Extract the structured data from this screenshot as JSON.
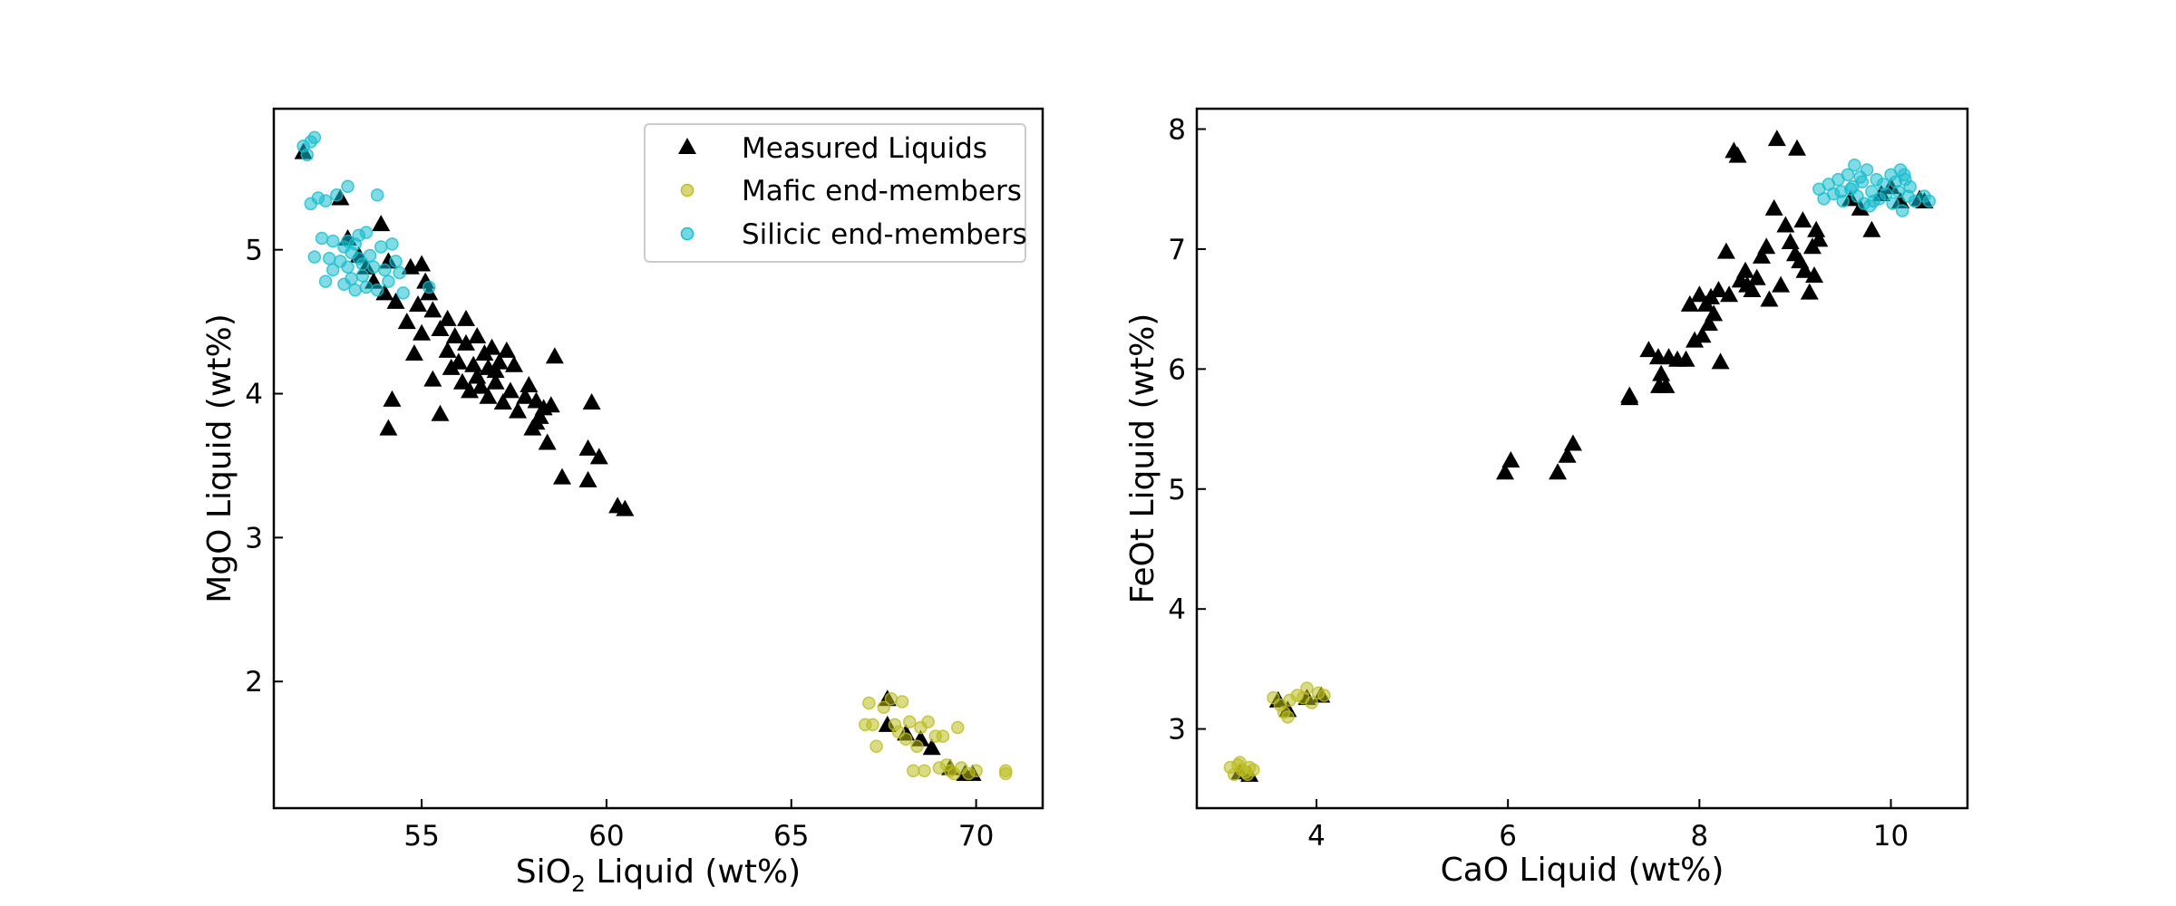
{
  "chart_data": [
    {
      "type": "scatter",
      "xlabel_main": "SiO",
      "xlabel_sub": "2",
      "xlabel_rest": " Liquid (wt%)",
      "ylabel": "MgO Liquid (wt%)",
      "xlim": [
        51.0,
        71.8
      ],
      "ylim": [
        1.12,
        5.98
      ],
      "xticks": [
        55,
        60,
        65,
        70
      ],
      "yticks": [
        2,
        3,
        4,
        5
      ],
      "legend_position": "top-right",
      "series": [
        {
          "name": "Measured Liquids",
          "marker": "triangle",
          "color": "#000000",
          "points": [
            [
              51.8,
              5.68
            ],
            [
              52.8,
              5.36
            ],
            [
              53.0,
              5.08
            ],
            [
              53.3,
              4.96
            ],
            [
              53.5,
              4.88
            ],
            [
              53.7,
              4.78
            ],
            [
              53.9,
              5.18
            ],
            [
              54.0,
              4.7
            ],
            [
              54.1,
              4.92
            ],
            [
              54.3,
              4.64
            ],
            [
              54.6,
              4.5
            ],
            [
              54.7,
              4.88
            ],
            [
              54.8,
              4.28
            ],
            [
              54.9,
              4.62
            ],
            [
              55.0,
              4.42
            ],
            [
              55.1,
              4.78
            ],
            [
              55.2,
              4.7
            ],
            [
              55.3,
              4.58
            ],
            [
              55.3,
              4.1
            ],
            [
              55.5,
              4.45
            ],
            [
              55.5,
              3.86
            ],
            [
              55.7,
              4.52
            ],
            [
              55.7,
              4.3
            ],
            [
              55.8,
              4.18
            ],
            [
              55.9,
              4.4
            ],
            [
              56.0,
              4.22
            ],
            [
              56.1,
              4.08
            ],
            [
              56.2,
              4.35
            ],
            [
              56.2,
              4.52
            ],
            [
              56.3,
              4.02
            ],
            [
              56.4,
              4.2
            ],
            [
              56.5,
              4.12
            ],
            [
              56.5,
              4.4
            ],
            [
              56.6,
              4.05
            ],
            [
              56.7,
              4.28
            ],
            [
              56.8,
              4.18
            ],
            [
              56.8,
              3.98
            ],
            [
              56.9,
              4.32
            ],
            [
              57.0,
              4.08
            ],
            [
              57.1,
              4.22
            ],
            [
              57.2,
              3.94
            ],
            [
              57.3,
              4.3
            ],
            [
              57.4,
              4.02
            ],
            [
              57.5,
              4.2
            ],
            [
              57.6,
              3.88
            ],
            [
              57.8,
              3.98
            ],
            [
              57.9,
              4.06
            ],
            [
              58.0,
              3.76
            ],
            [
              58.1,
              3.95
            ],
            [
              58.2,
              3.84
            ],
            [
              58.3,
              3.9
            ],
            [
              58.4,
              3.66
            ],
            [
              58.5,
              3.92
            ],
            [
              58.6,
              4.26
            ],
            [
              58.8,
              3.42
            ],
            [
              59.5,
              3.62
            ],
            [
              59.5,
              3.4
            ],
            [
              59.6,
              3.94
            ],
            [
              59.8,
              3.56
            ],
            [
              60.3,
              3.22
            ],
            [
              60.5,
              3.2
            ],
            [
              54.1,
              3.76
            ],
            [
              54.2,
              3.96
            ],
            [
              55.0,
              4.9
            ],
            [
              56.0,
              4.22
            ],
            [
              57.0,
              4.16
            ],
            [
              58.1,
              3.8
            ],
            [
              67.6,
              1.88
            ],
            [
              67.6,
              1.7
            ],
            [
              68.1,
              1.64
            ],
            [
              68.5,
              1.6
            ],
            [
              68.8,
              1.54
            ],
            [
              69.3,
              1.4
            ],
            [
              69.7,
              1.36
            ],
            [
              69.9,
              1.36
            ]
          ]
        },
        {
          "name": "Mafic end-members",
          "marker": "circle",
          "color": "#bcbd22",
          "points": [
            [
              67.1,
              1.85
            ],
            [
              67.2,
              1.7
            ],
            [
              67.3,
              1.55
            ],
            [
              67.5,
              1.82
            ],
            [
              67.7,
              1.88
            ],
            [
              67.8,
              1.7
            ],
            [
              67.9,
              1.65
            ],
            [
              68.0,
              1.86
            ],
            [
              68.1,
              1.6
            ],
            [
              68.2,
              1.72
            ],
            [
              68.4,
              1.55
            ],
            [
              68.5,
              1.68
            ],
            [
              68.6,
              1.38
            ],
            [
              68.7,
              1.72
            ],
            [
              68.9,
              1.62
            ],
            [
              69.0,
              1.4
            ],
            [
              69.1,
              1.62
            ],
            [
              69.2,
              1.42
            ],
            [
              69.3,
              1.38
            ],
            [
              69.5,
              1.68
            ],
            [
              69.6,
              1.4
            ],
            [
              69.8,
              1.36
            ],
            [
              70.0,
              1.38
            ],
            [
              70.8,
              1.38
            ],
            [
              70.8,
              1.36
            ],
            [
              67.0,
              1.7
            ],
            [
              68.3,
              1.38
            ],
            [
              69.4,
              1.36
            ]
          ]
        },
        {
          "name": "Silicic end-members",
          "marker": "circle",
          "color": "#17becf",
          "points": [
            [
              51.8,
              5.72
            ],
            [
              51.9,
              5.66
            ],
            [
              52.0,
              5.75
            ],
            [
              52.1,
              5.78
            ],
            [
              52.0,
              5.32
            ],
            [
              52.1,
              4.95
            ],
            [
              52.3,
              5.08
            ],
            [
              52.4,
              4.78
            ],
            [
              52.4,
              5.34
            ],
            [
              52.5,
              4.94
            ],
            [
              52.6,
              4.86
            ],
            [
              52.6,
              5.06
            ],
            [
              52.7,
              5.38
            ],
            [
              52.8,
              4.92
            ],
            [
              52.9,
              5.02
            ],
            [
              53.0,
              4.88
            ],
            [
              53.0,
              5.44
            ],
            [
              53.1,
              4.8
            ],
            [
              53.1,
              4.98
            ],
            [
              53.2,
              5.04
            ],
            [
              53.2,
              4.72
            ],
            [
              53.3,
              5.1
            ],
            [
              53.4,
              4.9
            ],
            [
              53.4,
              4.82
            ],
            [
              53.5,
              4.74
            ],
            [
              53.5,
              5.12
            ],
            [
              53.6,
              4.96
            ],
            [
              53.7,
              4.88
            ],
            [
              53.8,
              4.72
            ],
            [
              53.8,
              5.38
            ],
            [
              53.9,
              5.02
            ],
            [
              54.0,
              4.86
            ],
            [
              54.1,
              4.78
            ],
            [
              54.2,
              5.04
            ],
            [
              54.3,
              4.92
            ],
            [
              54.4,
              4.84
            ],
            [
              54.5,
              4.7
            ],
            [
              55.2,
              4.74
            ],
            [
              52.2,
              5.36
            ],
            [
              53.3,
              4.94
            ],
            [
              53.0,
              5.06
            ],
            [
              52.9,
              4.76
            ]
          ]
        }
      ]
    },
    {
      "type": "scatter",
      "xlabel": "CaO Liquid (wt%)",
      "ylabel": "FeOt Liquid (wt%)",
      "xlim": [
        2.75,
        10.8
      ],
      "ylim": [
        2.34,
        8.17
      ],
      "xticks": [
        4,
        6,
        8,
        10
      ],
      "yticks": [
        3,
        4,
        5,
        6,
        7,
        8
      ],
      "series": [
        {
          "name": "Measured Liquids",
          "marker": "triangle",
          "color": "#000000",
          "points": [
            [
              3.2,
              2.64
            ],
            [
              3.3,
              2.62
            ],
            [
              3.6,
              3.24
            ],
            [
              3.7,
              3.16
            ],
            [
              3.9,
              3.26
            ],
            [
              4.05,
              3.28
            ],
            [
              5.97,
              5.14
            ],
            [
              6.03,
              5.24
            ],
            [
              6.52,
              5.14
            ],
            [
              6.62,
              5.28
            ],
            [
              6.68,
              5.38
            ],
            [
              7.27,
              5.78
            ],
            [
              7.27,
              5.76
            ],
            [
              7.47,
              6.16
            ],
            [
              7.57,
              6.1
            ],
            [
              7.58,
              5.86
            ],
            [
              7.6,
              5.96
            ],
            [
              7.65,
              5.86
            ],
            [
              7.68,
              6.1
            ],
            [
              7.77,
              6.08
            ],
            [
              7.86,
              6.08
            ],
            [
              7.9,
              6.54
            ],
            [
              7.95,
              6.24
            ],
            [
              8.0,
              6.62
            ],
            [
              8.03,
              6.28
            ],
            [
              8.07,
              6.54
            ],
            [
              8.1,
              6.38
            ],
            [
              8.12,
              6.6
            ],
            [
              8.15,
              6.46
            ],
            [
              8.2,
              6.66
            ],
            [
              8.22,
              6.06
            ],
            [
              8.28,
              6.98
            ],
            [
              8.31,
              6.62
            ],
            [
              8.36,
              7.82
            ],
            [
              8.4,
              7.78
            ],
            [
              8.43,
              6.74
            ],
            [
              8.48,
              6.82
            ],
            [
              8.5,
              6.7
            ],
            [
              8.55,
              6.66
            ],
            [
              8.6,
              6.76
            ],
            [
              8.65,
              6.94
            ],
            [
              8.7,
              7.02
            ],
            [
              8.73,
              6.58
            ],
            [
              8.78,
              7.34
            ],
            [
              8.81,
              7.92
            ],
            [
              8.85,
              6.7
            ],
            [
              8.9,
              7.2
            ],
            [
              8.95,
              7.06
            ],
            [
              9.0,
              6.96
            ],
            [
              9.02,
              7.84
            ],
            [
              9.05,
              6.9
            ],
            [
              9.08,
              7.24
            ],
            [
              9.1,
              6.82
            ],
            [
              9.15,
              6.64
            ],
            [
              9.18,
              7.02
            ],
            [
              9.2,
              6.78
            ],
            [
              9.22,
              7.16
            ],
            [
              9.25,
              7.08
            ],
            [
              9.58,
              7.42
            ],
            [
              9.68,
              7.34
            ],
            [
              9.8,
              7.16
            ],
            [
              9.9,
              7.46
            ],
            [
              10.0,
              7.52
            ],
            [
              10.1,
              7.4
            ],
            [
              10.3,
              7.42
            ],
            [
              10.35,
              7.4
            ]
          ]
        },
        {
          "name": "Mafic end-members",
          "marker": "circle",
          "color": "#bcbd22",
          "points": [
            [
              3.1,
              2.68
            ],
            [
              3.14,
              2.62
            ],
            [
              3.18,
              2.7
            ],
            [
              3.22,
              2.66
            ],
            [
              3.26,
              2.64
            ],
            [
              3.3,
              2.68
            ],
            [
              3.34,
              2.66
            ],
            [
              3.2,
              2.72
            ],
            [
              3.28,
              2.62
            ],
            [
              3.55,
              3.26
            ],
            [
              3.62,
              3.2
            ],
            [
              3.66,
              3.14
            ],
            [
              3.72,
              3.24
            ],
            [
              3.8,
              3.28
            ],
            [
              3.86,
              3.26
            ],
            [
              3.9,
              3.34
            ],
            [
              3.95,
              3.22
            ],
            [
              4.02,
              3.3
            ],
            [
              4.08,
              3.28
            ],
            [
              3.7,
              3.1
            ]
          ]
        },
        {
          "name": "Silicic end-members",
          "marker": "circle",
          "color": "#17becf",
          "points": [
            [
              9.25,
              7.5
            ],
            [
              9.3,
              7.42
            ],
            [
              9.35,
              7.54
            ],
            [
              9.4,
              7.46
            ],
            [
              9.45,
              7.58
            ],
            [
              9.5,
              7.4
            ],
            [
              9.55,
              7.62
            ],
            [
              9.58,
              7.5
            ],
            [
              9.62,
              7.7
            ],
            [
              9.65,
              7.44
            ],
            [
              9.7,
              7.56
            ],
            [
              9.72,
              7.38
            ],
            [
              9.75,
              7.66
            ],
            [
              9.8,
              7.48
            ],
            [
              9.85,
              7.58
            ],
            [
              9.88,
              7.42
            ],
            [
              9.92,
              7.54
            ],
            [
              9.95,
              7.46
            ],
            [
              10.0,
              7.62
            ],
            [
              10.02,
              7.38
            ],
            [
              10.05,
              7.56
            ],
            [
              10.08,
              7.48
            ],
            [
              10.1,
              7.66
            ],
            [
              10.12,
              7.32
            ],
            [
              10.15,
              7.58
            ],
            [
              10.18,
              7.44
            ],
            [
              10.2,
              7.52
            ],
            [
              10.25,
              7.4
            ],
            [
              10.35,
              7.44
            ],
            [
              10.4,
              7.4
            ],
            [
              9.6,
              7.52
            ],
            [
              9.68,
              7.6
            ],
            [
              9.78,
              7.36
            ],
            [
              10.14,
              7.62
            ],
            [
              9.48,
              7.48
            ],
            [
              9.82,
              7.4
            ]
          ]
        }
      ]
    }
  ]
}
